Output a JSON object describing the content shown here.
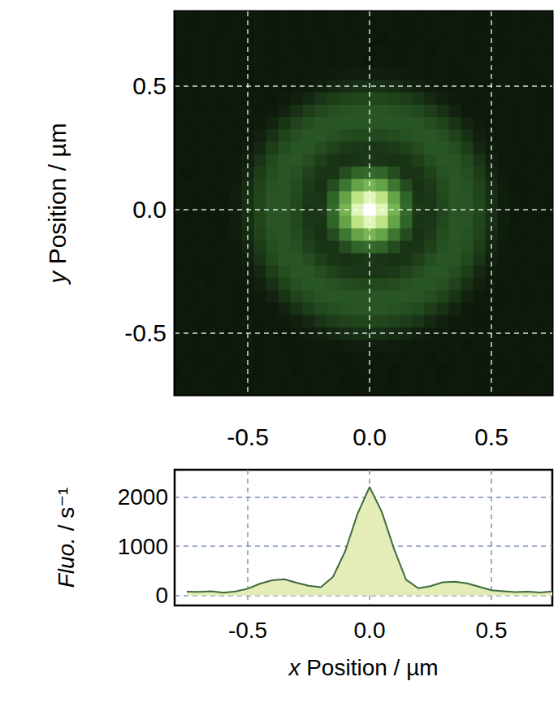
{
  "chart_data": [
    {
      "type": "heatmap",
      "y_label": "y Position / µm",
      "xlim": [
        -0.8,
        0.75
      ],
      "ylim": [
        -0.75,
        0.8
      ],
      "xticks": [
        -0.5,
        {
          "value": 0,
          "label": "0.0"
        },
        0.5
      ],
      "yticks": [
        -0.5,
        {
          "value": 0,
          "label": "0.0"
        },
        0.5
      ],
      "grid": true,
      "x": [
        -0.8,
        -0.75,
        -0.7,
        -0.65,
        -0.6,
        -0.55,
        -0.5,
        -0.45,
        -0.4,
        -0.35,
        -0.3,
        -0.25,
        -0.2,
        -0.15,
        -0.1,
        -0.05,
        0,
        0.05,
        0.1,
        0.15,
        0.2,
        0.25,
        0.3,
        0.35,
        0.4,
        0.45,
        0.5,
        0.55,
        0.6,
        0.65,
        0.7,
        0.75
      ],
      "y": [
        -0.75,
        -0.7,
        -0.65,
        -0.6,
        -0.55,
        -0.5,
        -0.45,
        -0.4,
        -0.35,
        -0.3,
        -0.25,
        -0.2,
        -0.15,
        -0.1,
        -0.05,
        0,
        0.05,
        0.1,
        0.15,
        0.2,
        0.25,
        0.3,
        0.35,
        0.4,
        0.45,
        0.5,
        0.55,
        0.6,
        0.65,
        0.7,
        0.75,
        0.8
      ],
      "values": [
        [
          58,
          63,
          55,
          61,
          67,
          52,
          59,
          64,
          57,
          60,
          66,
          54,
          62,
          58,
          65,
          51,
          60,
          63,
          57,
          69,
          55,
          61,
          58,
          64,
          53,
          62,
          67,
          56,
          60,
          59,
          63,
          57
        ],
        [
          61,
          56,
          64,
          59,
          53,
          67,
          60,
          58,
          62,
          55,
          63,
          57,
          66,
          61,
          54,
          60,
          59,
          65,
          52,
          62,
          58,
          64,
          56,
          61,
          67,
          55,
          60,
          63,
          57,
          59,
          62,
          54
        ],
        [
          55,
          62,
          58,
          66,
          60,
          54,
          63,
          59,
          61,
          68,
          56,
          62,
          58,
          64,
          60,
          57,
          65,
          61,
          55,
          63,
          59,
          66,
          52,
          60,
          64,
          58,
          61,
          56,
          63,
          60,
          55,
          62
        ],
        [
          63,
          57,
          60,
          54,
          65,
          59,
          62,
          56,
          64,
          61,
          58,
          66,
          63,
          60,
          57,
          64,
          62,
          59,
          65,
          58,
          61,
          56,
          63,
          60,
          67,
          55,
          62,
          59,
          64,
          57,
          61,
          60
        ],
        [
          59,
          64,
          57,
          62,
          55,
          61,
          66,
          58,
          63,
          60,
          57,
          62,
          65,
          70,
          76,
          79,
          80,
          79,
          76,
          70,
          65,
          61,
          58,
          64,
          56,
          62,
          59,
          63,
          57,
          60,
          65,
          58
        ],
        [
          62,
          57,
          60,
          64,
          55,
          59,
          63,
          58,
          61,
          56,
          66,
          76,
          92,
          110,
          132,
          146,
          150,
          146,
          132,
          110,
          92,
          76,
          66,
          60,
          63,
          57,
          62,
          58,
          65,
          59,
          61,
          56
        ],
        [
          58,
          63,
          60,
          56,
          62,
          59,
          64,
          57,
          61,
          70,
          89,
          123,
          165,
          201,
          222,
          236,
          240,
          236,
          222,
          201,
          165,
          123,
          89,
          70,
          62,
          58,
          60,
          65,
          57,
          61,
          59,
          63
        ],
        [
          61,
          57,
          64,
          59,
          62,
          56,
          60,
          63,
          66,
          99,
          150,
          205,
          244,
          272,
          285,
          293,
          295,
          293,
          285,
          272,
          244,
          205,
          150,
          99,
          66,
          58,
          62,
          60,
          64,
          57,
          61,
          59
        ],
        [
          59,
          63,
          57,
          61,
          64,
          58,
          62,
          70,
          99,
          160,
          222,
          268,
          293,
          300,
          300,
          300,
          295,
          300,
          300,
          300,
          293,
          268,
          222,
          160,
          99,
          70,
          60,
          57,
          63,
          59,
          62,
          58
        ],
        [
          62,
          58,
          61,
          56,
          63,
          60,
          66,
          89,
          150,
          222,
          276,
          300,
          300,
          280,
          260,
          245,
          240,
          245,
          260,
          280,
          300,
          300,
          276,
          222,
          150,
          89,
          66,
          59,
          62,
          57,
          64,
          60
        ],
        [
          57,
          63,
          60,
          58,
          64,
          61,
          76,
          123,
          205,
          268,
          300,
          300,
          265,
          220,
          190,
          175,
          170,
          175,
          190,
          220,
          265,
          300,
          300,
          268,
          205,
          123,
          76,
          61,
          58,
          63,
          56,
          60
        ],
        [
          60,
          64,
          58,
          62,
          57,
          65,
          92,
          165,
          244,
          293,
          300,
          265,
          210,
          170,
          155,
          170,
          180,
          170,
          155,
          170,
          210,
          265,
          300,
          293,
          244,
          165,
          92,
          65,
          62,
          59,
          63,
          58
        ],
        [
          63,
          59,
          61,
          57,
          62,
          70,
          110,
          201,
          272,
          300,
          280,
          220,
          170,
          160,
          260,
          380,
          420,
          380,
          260,
          160,
          170,
          220,
          280,
          300,
          272,
          201,
          110,
          70,
          60,
          64,
          57,
          61
        ],
        [
          58,
          62,
          60,
          65,
          59,
          76,
          132,
          222,
          285,
          300,
          260,
          190,
          155,
          260,
          500,
          850,
          1000,
          850,
          500,
          260,
          155,
          190,
          260,
          300,
          285,
          222,
          132,
          76,
          63,
          57,
          61,
          60
        ],
        [
          61,
          57,
          63,
          59,
          60,
          79,
          146,
          236,
          293,
          300,
          245,
          175,
          170,
          380,
          850,
          1500,
          1800,
          1500,
          850,
          380,
          170,
          175,
          245,
          300,
          293,
          236,
          146,
          79,
          58,
          62,
          59,
          64
        ],
        [
          59,
          63,
          60,
          57,
          62,
          80,
          150,
          240,
          295,
          295,
          240,
          170,
          180,
          420,
          1000,
          1800,
          2200,
          1800,
          1000,
          420,
          180,
          170,
          240,
          295,
          295,
          240,
          150,
          80,
          61,
          58,
          64,
          60
        ],
        [
          60,
          64,
          58,
          62,
          57,
          79,
          146,
          236,
          293,
          300,
          245,
          175,
          170,
          380,
          850,
          1500,
          1800,
          1500,
          850,
          380,
          170,
          175,
          245,
          300,
          293,
          236,
          146,
          79,
          63,
          59,
          61,
          56
        ],
        [
          57,
          61,
          63,
          59,
          64,
          76,
          132,
          222,
          285,
          300,
          260,
          190,
          155,
          260,
          500,
          850,
          1000,
          850,
          500,
          260,
          155,
          190,
          260,
          300,
          285,
          222,
          132,
          76,
          60,
          58,
          62,
          65
        ],
        [
          62,
          56,
          60,
          64,
          58,
          70,
          110,
          201,
          272,
          300,
          280,
          220,
          170,
          160,
          260,
          380,
          420,
          380,
          260,
          160,
          170,
          220,
          280,
          300,
          272,
          201,
          110,
          70,
          59,
          63,
          57,
          61
        ],
        [
          59,
          63,
          57,
          61,
          60,
          65,
          92,
          165,
          244,
          293,
          300,
          265,
          210,
          170,
          155,
          170,
          180,
          170,
          155,
          170,
          210,
          265,
          300,
          293,
          244,
          165,
          92,
          65,
          64,
          58,
          62,
          57
        ],
        [
          61,
          57,
          64,
          59,
          62,
          58,
          76,
          123,
          205,
          268,
          300,
          300,
          265,
          220,
          190,
          175,
          170,
          175,
          190,
          220,
          265,
          300,
          300,
          268,
          205,
          123,
          76,
          60,
          63,
          57,
          62,
          59
        ],
        [
          58,
          62,
          59,
          63,
          57,
          61,
          66,
          89,
          150,
          222,
          276,
          300,
          300,
          280,
          260,
          245,
          240,
          245,
          260,
          280,
          300,
          300,
          276,
          222,
          150,
          89,
          66,
          62,
          58,
          64,
          59,
          61
        ],
        [
          63,
          58,
          61,
          57,
          62,
          59,
          64,
          70,
          99,
          160,
          222,
          268,
          293,
          300,
          300,
          300,
          295,
          300,
          300,
          300,
          293,
          268,
          222,
          160,
          99,
          70,
          58,
          62,
          59,
          63,
          57,
          61
        ],
        [
          57,
          62,
          59,
          63,
          58,
          61,
          64,
          60,
          66,
          99,
          150,
          205,
          244,
          272,
          285,
          293,
          295,
          293,
          285,
          272,
          244,
          205,
          150,
          99,
          66,
          61,
          57,
          63,
          59,
          62,
          58,
          60
        ],
        [
          60,
          64,
          57,
          62,
          59,
          63,
          58,
          61,
          56,
          70,
          89,
          123,
          165,
          201,
          222,
          236,
          240,
          236,
          222,
          201,
          165,
          123,
          89,
          70,
          63,
          59,
          62,
          57,
          61,
          64,
          58,
          60
        ],
        [
          59,
          62,
          58,
          63,
          61,
          57,
          64,
          60,
          62,
          58,
          66,
          76,
          92,
          110,
          132,
          146,
          150,
          146,
          132,
          110,
          92,
          76,
          66,
          57,
          61,
          63,
          59,
          62,
          58,
          64,
          60,
          61
        ],
        [
          62,
          58,
          61,
          57,
          63,
          59,
          60,
          64,
          58,
          62,
          59,
          61,
          65,
          70,
          76,
          79,
          80,
          79,
          76,
          70,
          65,
          57,
          63,
          60,
          58,
          62,
          59,
          64,
          61,
          57,
          60,
          63
        ],
        [
          60,
          57,
          63,
          59,
          62,
          55,
          61,
          64,
          58,
          60,
          63,
          57,
          62,
          59,
          65,
          61,
          56,
          63,
          60,
          58,
          64,
          57,
          61,
          59,
          62,
          66,
          58,
          60,
          63,
          57,
          61,
          59
        ],
        [
          64,
          59,
          61,
          56,
          63,
          60,
          58,
          62,
          57,
          65,
          60,
          59,
          63,
          58,
          61,
          64,
          57,
          62,
          60,
          59,
          63,
          56,
          61,
          65,
          58,
          60,
          62,
          57,
          64,
          59,
          61,
          58
        ],
        [
          57,
          61,
          64,
          58,
          60,
          63,
          56,
          62,
          59,
          61,
          57,
          64,
          60,
          58,
          63,
          59,
          62,
          55,
          61,
          60,
          58,
          64,
          59,
          62,
          57,
          63,
          60,
          58,
          61,
          65,
          59,
          62
        ],
        [
          62,
          58,
          60,
          65,
          57,
          61,
          59,
          63,
          56,
          62,
          60,
          64,
          58,
          61,
          57,
          63,
          59,
          62,
          60,
          56,
          64,
          58,
          61,
          63,
          59,
          57,
          62,
          60,
          65,
          58,
          61,
          60
        ],
        [
          59,
          63,
          57,
          62,
          60,
          58,
          64,
          61,
          56,
          63,
          59,
          62,
          58,
          65,
          60,
          57,
          61,
          63,
          59,
          62,
          57,
          64,
          60,
          58,
          62,
          59,
          63,
          56,
          61,
          60,
          64,
          58
        ]
      ]
    },
    {
      "type": "area",
      "x_label": "x Position / µm",
      "y_label": "Fluo. / s⁻¹",
      "xlim": [
        -0.8,
        0.75
      ],
      "ylim": [
        -200,
        2550
      ],
      "xticks": [
        -0.5,
        {
          "value": 0,
          "label": "0.0"
        },
        0.5
      ],
      "yticks": [
        0,
        1000,
        2000
      ],
      "grid": true,
      "color": "#3f6b3f",
      "x": [
        -0.75,
        -0.7,
        -0.65,
        -0.6,
        -0.55,
        -0.5,
        -0.45,
        -0.4,
        -0.35,
        -0.3,
        -0.25,
        -0.2,
        -0.15,
        -0.1,
        -0.05,
        0,
        0.05,
        0.1,
        0.15,
        0.2,
        0.25,
        0.3,
        0.35,
        0.4,
        0.45,
        0.5,
        0.55,
        0.6,
        0.65,
        0.7,
        0.75
      ],
      "values": [
        80,
        75,
        90,
        60,
        85,
        140,
        240,
        310,
        330,
        260,
        200,
        170,
        380,
        900,
        1650,
        2200,
        1700,
        950,
        320,
        150,
        190,
        270,
        280,
        250,
        180,
        110,
        90,
        70,
        80,
        65,
        85
      ]
    }
  ]
}
